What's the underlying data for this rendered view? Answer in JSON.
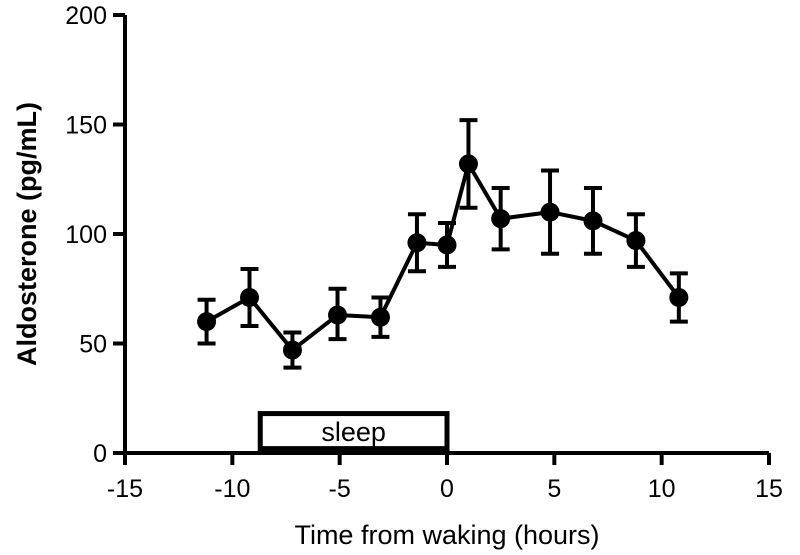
{
  "chart_data": {
    "type": "line",
    "title": "",
    "xlabel": "Time from waking (hours)",
    "ylabel": "Aldosterone (pg/mL)",
    "xlim": [
      -15,
      15
    ],
    "ylim": [
      0,
      200
    ],
    "xticks": [
      -15,
      -10,
      -5,
      0,
      5,
      10,
      15
    ],
    "yticks": [
      0,
      50,
      100,
      150,
      200
    ],
    "grid": false,
    "series": [
      {
        "name": "",
        "color": "#000000",
        "marker": "circle",
        "x": [
          -11.2,
          -9.2,
          -7.2,
          -5.1,
          -3.1,
          -1.4,
          0.0,
          1.0,
          2.5,
          4.8,
          6.8,
          8.8,
          10.8
        ],
        "y": [
          60,
          71,
          47,
          63,
          62,
          96,
          95,
          132,
          107,
          110,
          106,
          97,
          71
        ],
        "err_up": [
          10,
          13,
          8,
          12,
          9,
          13,
          10,
          20,
          14,
          19,
          15,
          12,
          11
        ],
        "err_dn": [
          10,
          13,
          8,
          11,
          9,
          13,
          10,
          20,
          14,
          19,
          15,
          12,
          11
        ]
      }
    ],
    "annotations": [
      {
        "text": "sleep",
        "x_start": -8.7,
        "x_end": 0,
        "y_bottom": 2,
        "y_top": 18
      }
    ]
  }
}
